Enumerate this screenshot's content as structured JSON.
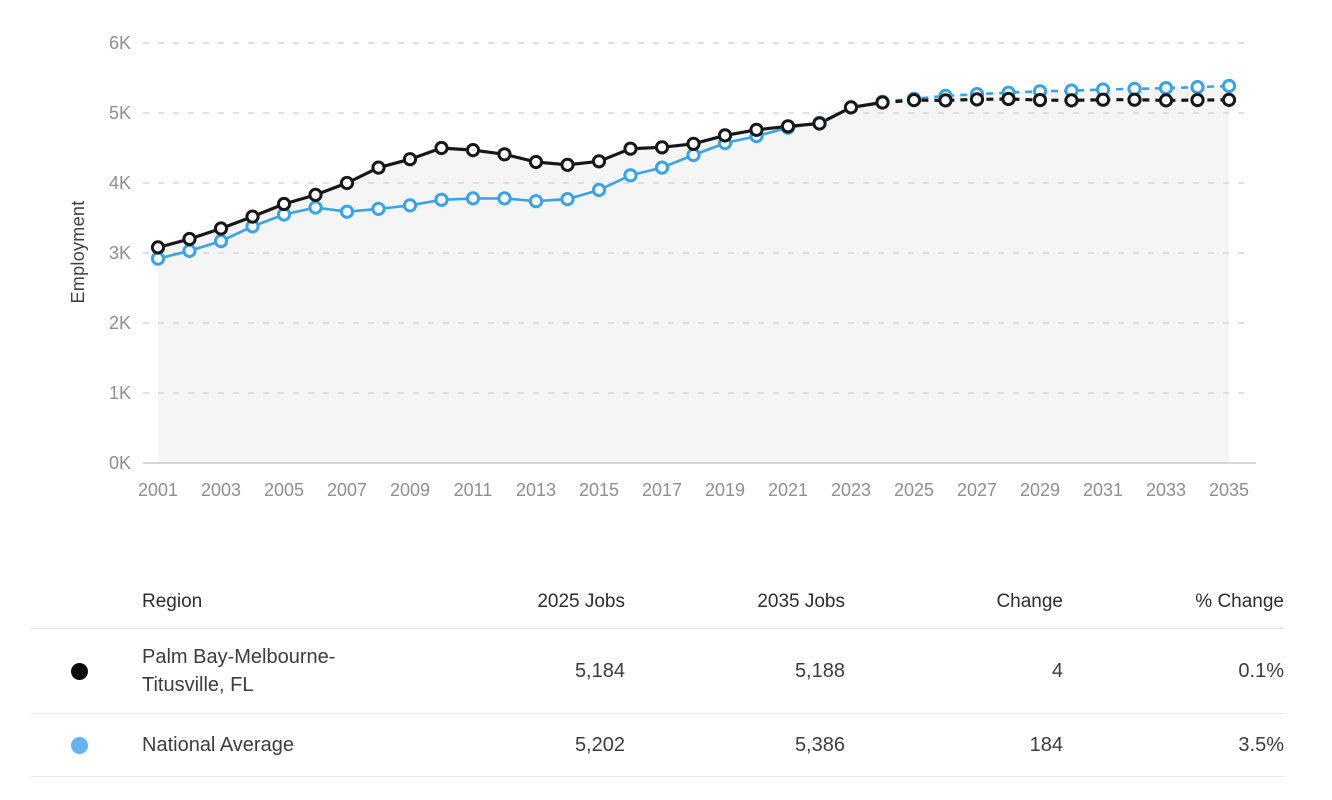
{
  "chart_data": {
    "type": "line",
    "title": "",
    "xlabel": "",
    "ylabel": "Employment",
    "ylim": [
      0,
      6000
    ],
    "grid": "horizontal-dashed",
    "legend_position": "table-below-chart",
    "y_ticks": [
      {
        "label": "0K",
        "value": 0
      },
      {
        "label": "1K",
        "value": 1000
      },
      {
        "label": "2K",
        "value": 2000
      },
      {
        "label": "3K",
        "value": 3000
      },
      {
        "label": "4K",
        "value": 4000
      },
      {
        "label": "5K",
        "value": 5000
      },
      {
        "label": "6K",
        "value": 6000
      }
    ],
    "x_tick_years": [
      2001,
      2003,
      2005,
      2007,
      2009,
      2011,
      2013,
      2015,
      2017,
      2019,
      2021,
      2023,
      2025,
      2027,
      2029,
      2031,
      2033,
      2035
    ],
    "x": [
      2001,
      2002,
      2003,
      2004,
      2005,
      2006,
      2007,
      2008,
      2009,
      2010,
      2011,
      2012,
      2013,
      2014,
      2015,
      2016,
      2017,
      2018,
      2019,
      2020,
      2021,
      2022,
      2023,
      2024,
      2025,
      2026,
      2027,
      2028,
      2029,
      2030,
      2031,
      2032,
      2033,
      2034,
      2035
    ],
    "forecast_start_year": 2024,
    "series": [
      {
        "key": "national-average",
        "name": "National Average",
        "color": "#38a3e8",
        "marker_fill": "#ffffff",
        "line_width": 2.6,
        "values": [
          2920,
          3030,
          3170,
          3380,
          3550,
          3650,
          3590,
          3630,
          3680,
          3760,
          3780,
          3780,
          3740,
          3770,
          3900,
          4110,
          4220,
          4400,
          4570,
          4670,
          4790,
          4860,
          5080,
          5160,
          5202,
          5245,
          5270,
          5290,
          5310,
          5320,
          5335,
          5345,
          5355,
          5370,
          5386
        ]
      },
      {
        "key": "palm-bay",
        "name": "Palm Bay-Melbourne-Titusville, FL",
        "color": "#171717",
        "marker_fill": "#ffffff",
        "line_width": 3.2,
        "values": [
          3080,
          3200,
          3350,
          3520,
          3700,
          3830,
          4000,
          4220,
          4340,
          4500,
          4470,
          4410,
          4300,
          4260,
          4310,
          4490,
          4510,
          4560,
          4680,
          4760,
          4810,
          4850,
          5080,
          5150,
          5184,
          5180,
          5195,
          5200,
          5185,
          5180,
          5190,
          5190,
          5180,
          5185,
          5188
        ]
      }
    ]
  },
  "table": {
    "headers": [
      "Region",
      "2025 Jobs",
      "2035 Jobs",
      "Change",
      "% Change"
    ],
    "rows": [
      {
        "region": "Palm Bay-Melbourne-Titusville, FL",
        "marker_color": "#0a0a0a",
        "jobs_2025": "5,184",
        "jobs_2035": "5,188",
        "change": "4",
        "pct_change": "0.1%"
      },
      {
        "region": "National Average",
        "marker_color": "#62b3ef",
        "jobs_2025": "5,202",
        "jobs_2035": "5,386",
        "change": "184",
        "pct_change": "3.5%"
      }
    ]
  },
  "colors": {
    "accent_blue": "#38a3e8",
    "series_black": "#171717",
    "grid_line": "#d6d6d6",
    "axis_line": "#cccccc",
    "tick_text": "#8e8e8e",
    "area_fill": "#f5f5f5",
    "table_divider": "#ebebeb"
  }
}
